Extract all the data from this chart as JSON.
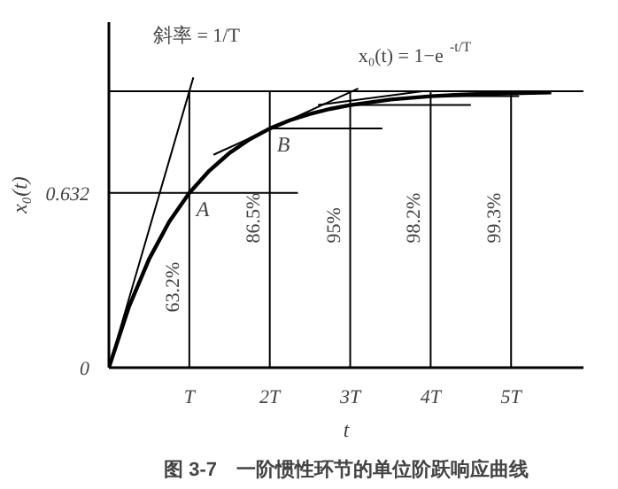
{
  "chart_data": {
    "type": "line",
    "title": "图 3-7　一阶惯性环节的单位阶跃响应曲线",
    "xlabel": "t",
    "ylabel": "x₀(t)",
    "xlim": [
      0,
      5.9
    ],
    "ylim": [
      0,
      1.25
    ],
    "xticks": [
      {
        "value": 0,
        "label": null
      },
      {
        "value": 1,
        "label": "T"
      },
      {
        "value": 2,
        "label": "2T"
      },
      {
        "value": 3,
        "label": "3T"
      },
      {
        "value": 4,
        "label": "4T"
      },
      {
        "value": 5,
        "label": "5T"
      }
    ],
    "yticks": [
      0,
      0.632
    ],
    "x": [
      0,
      0.25,
      0.5,
      0.75,
      1,
      1.25,
      1.5,
      1.75,
      2,
      2.25,
      2.5,
      2.75,
      3,
      3.5,
      4,
      4.5,
      5,
      5.5
    ],
    "series": [
      {
        "color": "#000000",
        "values": [
          0,
          0.221,
          0.393,
          0.528,
          0.632,
          0.713,
          0.777,
          0.826,
          0.865,
          0.895,
          0.918,
          0.936,
          0.95,
          0.97,
          0.982,
          0.989,
          0.993,
          0.996
        ]
      },
      {
        "color": "#000000",
        "x": [
          0,
          1.05
        ],
        "values": [
          0,
          1.05
        ]
      },
      {
        "color": "#000000",
        "x": [
          1.3,
          3.1
        ],
        "values": [
          0.77,
          1.01
        ]
      },
      {
        "color": "#000000",
        "x": [
          2.6,
          3.9
        ],
        "values": [
          0.95,
          1.0
        ]
      },
      {
        "color": "#000000",
        "x": [
          0,
          2.35
        ],
        "values": [
          0.632,
          0.632
        ]
      },
      {
        "color": "#000000",
        "x": [
          2,
          3.4
        ],
        "values": [
          0.865,
          0.865
        ]
      },
      {
        "color": "#000000",
        "x": [
          3,
          4.5
        ],
        "values": [
          0.95,
          0.95
        ]
      },
      {
        "color": "#000000",
        "x": [
          4,
          5.1
        ],
        "values": [
          0.982,
          0.982
        ]
      }
    ],
    "ref_lines": [
      {
        "axis": "y",
        "value": 1
      },
      {
        "axis": "x",
        "value": 1
      },
      {
        "axis": "x",
        "value": 2
      },
      {
        "axis": "x",
        "value": 3
      },
      {
        "axis": "x",
        "value": 4
      },
      {
        "axis": "x",
        "value": 5
      }
    ],
    "annotations": [
      {
        "text": "A",
        "x": 1,
        "y": 0.632
      },
      {
        "text": "B",
        "x": 2,
        "y": 0.865
      },
      {
        "text": "63.2%",
        "x": 1,
        "y": 0.2
      },
      {
        "text": "86.5%",
        "x": 2,
        "y": 0.45
      },
      {
        "text": "95%",
        "x": 3,
        "y": 0.45
      },
      {
        "text": "98.2%",
        "x": 4,
        "y": 0.45
      },
      {
        "text": "99.3%",
        "x": 5,
        "y": 0.45
      },
      "斜率 = 1/T",
      "x₀(t) = 1−e$^{-t/T}$"
    ],
    "grid": false,
    "marker": "none",
    "line_style": "solid"
  }
}
